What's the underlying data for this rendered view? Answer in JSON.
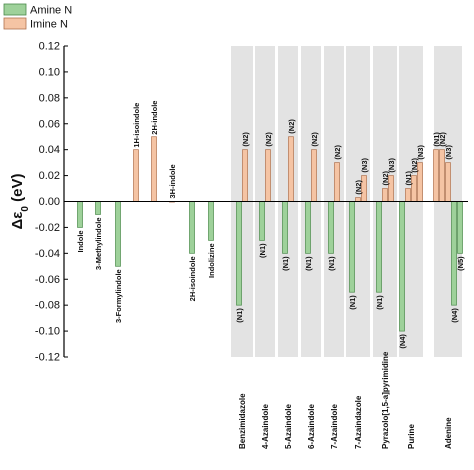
{
  "chart_data": {
    "type": "bar",
    "ylabel_main": "Δε",
    "ylabel_sub": "0",
    "ylabel_unit": " (eV)",
    "ylim": [
      -0.12,
      0.12
    ],
    "yticks": [
      -0.12,
      -0.1,
      -0.08,
      -0.06,
      -0.04,
      -0.02,
      0.0,
      0.02,
      0.04,
      0.06,
      0.08,
      0.1,
      0.12
    ],
    "grid": false,
    "legend_position": "top-left",
    "series": [
      {
        "name": "Amine N",
        "key": "amine",
        "color": "#9ed19a",
        "stroke": "#4a8a4a"
      },
      {
        "name": "Imine  N",
        "key": "imine",
        "color": "#f5c4a4",
        "stroke": "#b0724e"
      }
    ],
    "shade_color": "#e3e3e3",
    "categories": [
      {
        "label": "Indole",
        "shaded": false,
        "bars": [
          {
            "series": "amine",
            "value": -0.02,
            "tag": ""
          }
        ]
      },
      {
        "label": "3-Methylindole",
        "shaded": false,
        "bars": [
          {
            "series": "amine",
            "value": -0.01,
            "tag": ""
          }
        ]
      },
      {
        "label": "3-Formylindole",
        "shaded": false,
        "bars": [
          {
            "series": "amine",
            "value": -0.05,
            "tag": ""
          }
        ]
      },
      {
        "label": "1H-isoindole",
        "shaded": false,
        "bars": [
          {
            "series": "imine",
            "value": 0.04,
            "tag": ""
          }
        ]
      },
      {
        "label": "2H-indole",
        "shaded": false,
        "bars": [
          {
            "series": "imine",
            "value": 0.05,
            "tag": ""
          }
        ]
      },
      {
        "label": "3H-indole",
        "shaded": false,
        "bars": [
          {
            "series": "imine",
            "value": 0.0,
            "tag": ""
          }
        ]
      },
      {
        "label": "2H-isoindole",
        "shaded": false,
        "bars": [
          {
            "series": "amine",
            "value": -0.04,
            "tag": ""
          }
        ]
      },
      {
        "label": "Indolizine",
        "shaded": false,
        "bars": [
          {
            "series": "amine",
            "value": -0.03,
            "tag": ""
          }
        ]
      },
      {
        "label": "Benzimidazole",
        "shaded": true,
        "bars": [
          {
            "series": "amine",
            "value": -0.08,
            "tag": "(N1)"
          },
          {
            "series": "imine",
            "value": 0.04,
            "tag": "(N2)"
          }
        ]
      },
      {
        "label": "4-Azaindole",
        "shaded": true,
        "bars": [
          {
            "series": "amine",
            "value": -0.03,
            "tag": "(N1)"
          },
          {
            "series": "imine",
            "value": 0.04,
            "tag": "(N2)"
          }
        ]
      },
      {
        "label": "5-Azaindole",
        "shaded": true,
        "bars": [
          {
            "series": "amine",
            "value": -0.04,
            "tag": "(N1)"
          },
          {
            "series": "imine",
            "value": 0.05,
            "tag": "(N2)"
          }
        ]
      },
      {
        "label": "6-Azaindole",
        "shaded": true,
        "bars": [
          {
            "series": "amine",
            "value": -0.04,
            "tag": "(N1)"
          },
          {
            "series": "imine",
            "value": 0.04,
            "tag": "(N2)"
          }
        ]
      },
      {
        "label": "7-Azaindole",
        "shaded": true,
        "bars": [
          {
            "series": "amine",
            "value": -0.04,
            "tag": "(N1)"
          },
          {
            "series": "imine",
            "value": 0.03,
            "tag": "(N2)"
          }
        ]
      },
      {
        "label": "7-Azaindazole",
        "shaded": true,
        "bars": [
          {
            "series": "amine",
            "value": -0.07,
            "tag": "(N1)"
          },
          {
            "series": "imine",
            "value": 0.003,
            "tag": "(N2)"
          },
          {
            "series": "imine",
            "value": 0.02,
            "tag": "(N3)"
          }
        ]
      },
      {
        "label": "Pyrazolo[1,5-a]pyrimidine",
        "shaded": true,
        "bars": [
          {
            "series": "amine",
            "value": -0.07,
            "tag": "(N1)"
          },
          {
            "series": "imine",
            "value": 0.01,
            "tag": "(N2)"
          },
          {
            "series": "imine",
            "value": 0.02,
            "tag": "(N3)"
          }
        ]
      },
      {
        "label": "Purine",
        "shaded": true,
        "bars": [
          {
            "series": "amine",
            "value": -0.1,
            "tag": "(N4)"
          },
          {
            "series": "imine",
            "value": 0.01,
            "tag": "(N1)"
          },
          {
            "series": "imine",
            "value": 0.02,
            "tag": "(N2)"
          },
          {
            "series": "imine",
            "value": 0.03,
            "tag": "(N3)"
          }
        ]
      },
      {
        "label": "Adenine",
        "shaded": true,
        "bars": [
          {
            "series": "imine",
            "value": 0.04,
            "tag": "(N1)"
          },
          {
            "series": "imine",
            "value": 0.04,
            "tag": "(N2)"
          },
          {
            "series": "imine",
            "value": 0.03,
            "tag": "(N3)"
          },
          {
            "series": "amine",
            "value": -0.08,
            "tag": "(N4)"
          },
          {
            "series": "amine",
            "value": -0.04,
            "tag": "(N5)"
          }
        ]
      }
    ]
  }
}
